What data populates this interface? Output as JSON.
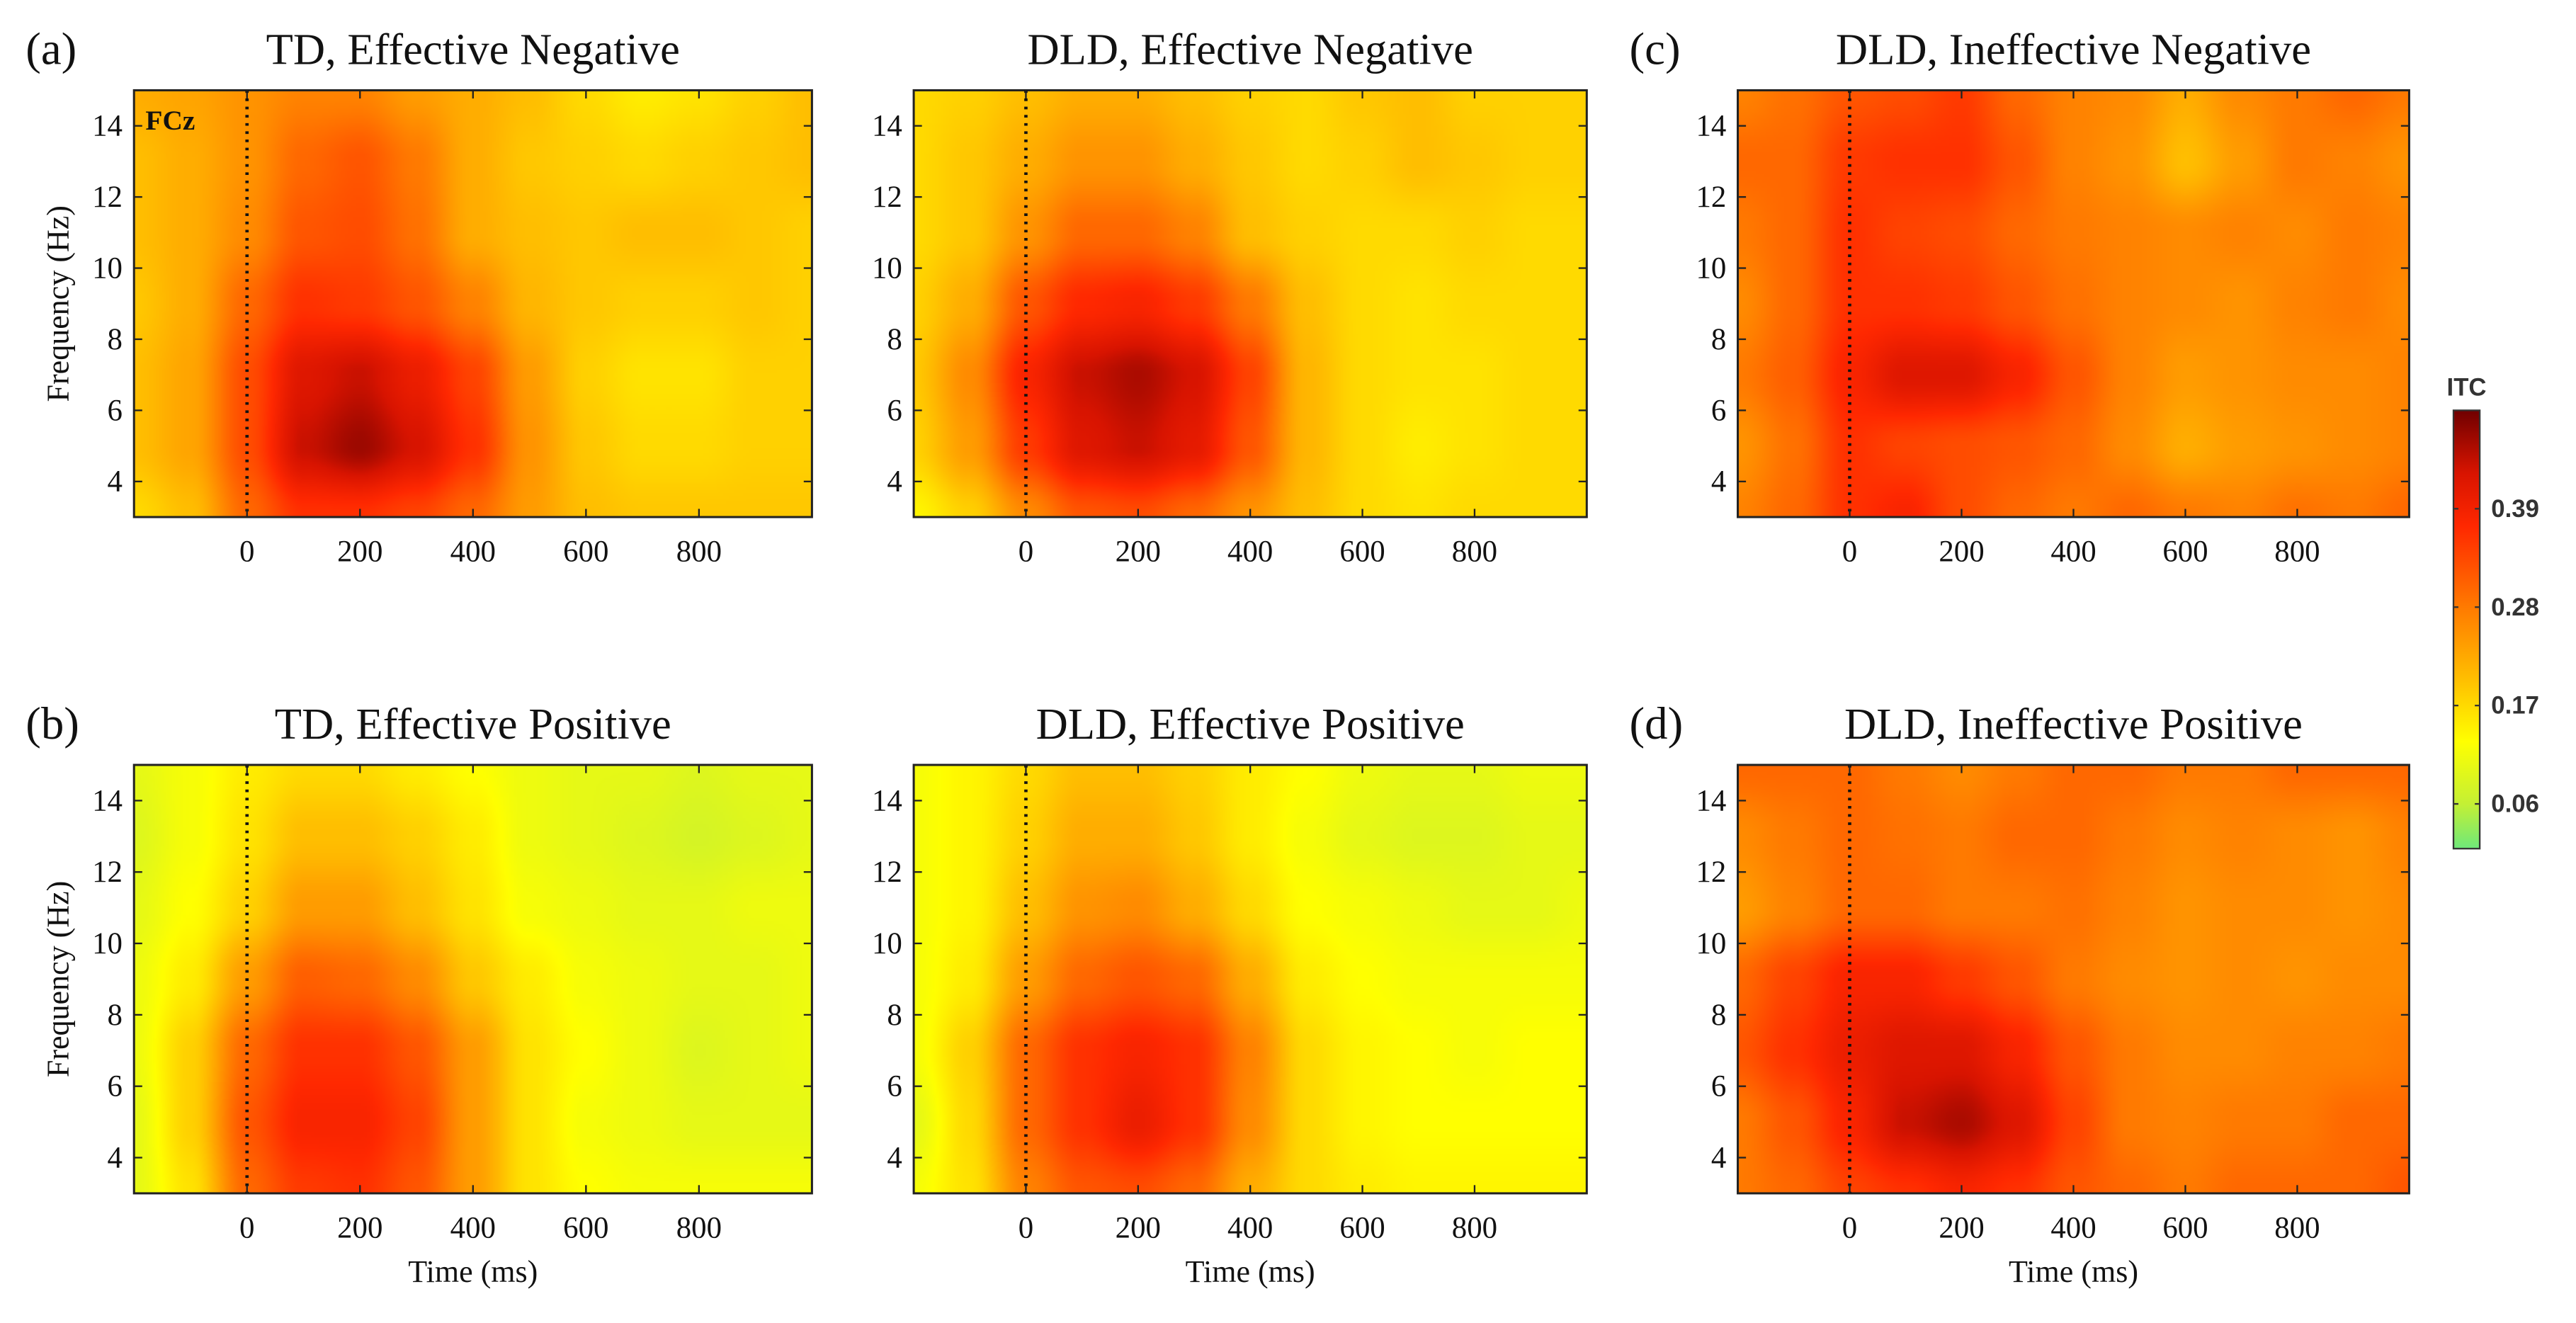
{
  "chart_data": [
    {
      "type": "heatmap",
      "panel": "a",
      "panel_label": "(a)",
      "title": "TD, Effective Negative",
      "annotation": "FCz",
      "xlabel": "",
      "ylabel": "Frequency (Hz)",
      "xlim": [
        -200,
        1000
      ],
      "ylim": [
        3,
        15
      ],
      "xticks": [
        0,
        200,
        400,
        600,
        800
      ],
      "yticks": [
        4,
        6,
        8,
        10,
        12,
        14
      ],
      "event_line_x": 0,
      "x": [
        -200,
        -100,
        0,
        100,
        200,
        300,
        400,
        500,
        600,
        700,
        800,
        900,
        1000
      ],
      "y": [
        15,
        13,
        11,
        9,
        7,
        5,
        3
      ],
      "z": [
        [
          0.22,
          0.23,
          0.25,
          0.27,
          0.27,
          0.24,
          0.22,
          0.2,
          0.17,
          0.15,
          0.16,
          0.18,
          0.2
        ],
        [
          0.2,
          0.22,
          0.25,
          0.3,
          0.32,
          0.28,
          0.22,
          0.19,
          0.18,
          0.17,
          0.18,
          0.19,
          0.2
        ],
        [
          0.2,
          0.22,
          0.26,
          0.32,
          0.33,
          0.29,
          0.22,
          0.2,
          0.19,
          0.2,
          0.2,
          0.19,
          0.18
        ],
        [
          0.19,
          0.22,
          0.3,
          0.36,
          0.35,
          0.32,
          0.27,
          0.21,
          0.19,
          0.18,
          0.18,
          0.19,
          0.18
        ],
        [
          0.2,
          0.23,
          0.33,
          0.42,
          0.44,
          0.4,
          0.34,
          0.24,
          0.18,
          0.16,
          0.16,
          0.18,
          0.18
        ],
        [
          0.2,
          0.23,
          0.33,
          0.44,
          0.47,
          0.43,
          0.36,
          0.25,
          0.19,
          0.17,
          0.17,
          0.18,
          0.18
        ],
        [
          0.17,
          0.2,
          0.3,
          0.36,
          0.36,
          0.34,
          0.3,
          0.24,
          0.2,
          0.19,
          0.19,
          0.19,
          0.19
        ]
      ]
    },
    {
      "type": "heatmap",
      "panel": "a2",
      "panel_label": "",
      "title": "DLD, Effective Negative",
      "xlabel": "",
      "ylabel": "",
      "xlim": [
        -200,
        1000
      ],
      "ylim": [
        3,
        15
      ],
      "xticks": [
        0,
        200,
        400,
        600,
        800
      ],
      "yticks": [
        4,
        6,
        8,
        10,
        12,
        14
      ],
      "event_line_x": 0,
      "x": [
        -200,
        -100,
        0,
        100,
        200,
        300,
        400,
        500,
        600,
        700,
        800,
        900,
        1000
      ],
      "y": [
        15,
        13,
        11,
        9,
        7,
        5,
        3
      ],
      "z": [
        [
          0.17,
          0.18,
          0.2,
          0.22,
          0.22,
          0.2,
          0.18,
          0.17,
          0.19,
          0.2,
          0.18,
          0.18,
          0.18
        ],
        [
          0.17,
          0.19,
          0.22,
          0.25,
          0.25,
          0.22,
          0.19,
          0.17,
          0.18,
          0.2,
          0.19,
          0.18,
          0.18
        ],
        [
          0.17,
          0.19,
          0.25,
          0.3,
          0.3,
          0.27,
          0.2,
          0.18,
          0.17,
          0.17,
          0.18,
          0.17,
          0.17
        ],
        [
          0.18,
          0.22,
          0.32,
          0.37,
          0.38,
          0.35,
          0.28,
          0.2,
          0.17,
          0.16,
          0.17,
          0.17,
          0.17
        ],
        [
          0.19,
          0.26,
          0.38,
          0.44,
          0.46,
          0.43,
          0.34,
          0.21,
          0.17,
          0.16,
          0.16,
          0.17,
          0.17
        ],
        [
          0.18,
          0.24,
          0.35,
          0.42,
          0.44,
          0.41,
          0.32,
          0.21,
          0.17,
          0.15,
          0.16,
          0.17,
          0.17
        ],
        [
          0.14,
          0.18,
          0.26,
          0.32,
          0.33,
          0.3,
          0.25,
          0.2,
          0.17,
          0.16,
          0.17,
          0.17,
          0.17
        ]
      ]
    },
    {
      "type": "heatmap",
      "panel": "c",
      "panel_label": "(c)",
      "title": "DLD, Ineffective Negative",
      "xlabel": "",
      "ylabel": "",
      "xlim": [
        -200,
        1000
      ],
      "ylim": [
        3,
        15
      ],
      "xticks": [
        0,
        200,
        400,
        600,
        800
      ],
      "yticks": [
        4,
        6,
        8,
        10,
        12,
        14
      ],
      "event_line_x": 0,
      "x": [
        -200,
        -100,
        0,
        100,
        200,
        300,
        400,
        500,
        600,
        700,
        800,
        900,
        1000
      ],
      "y": [
        15,
        13,
        11,
        9,
        7,
        5,
        3
      ],
      "z": [
        [
          0.27,
          0.29,
          0.32,
          0.33,
          0.35,
          0.3,
          0.27,
          0.26,
          0.22,
          0.26,
          0.28,
          0.3,
          0.28
        ],
        [
          0.3,
          0.3,
          0.35,
          0.36,
          0.36,
          0.32,
          0.27,
          0.25,
          0.2,
          0.24,
          0.28,
          0.27,
          0.25
        ],
        [
          0.28,
          0.3,
          0.36,
          0.34,
          0.33,
          0.3,
          0.28,
          0.27,
          0.26,
          0.27,
          0.26,
          0.28,
          0.27
        ],
        [
          0.26,
          0.3,
          0.36,
          0.36,
          0.35,
          0.32,
          0.29,
          0.27,
          0.26,
          0.25,
          0.27,
          0.28,
          0.26
        ],
        [
          0.28,
          0.31,
          0.38,
          0.42,
          0.42,
          0.38,
          0.32,
          0.27,
          0.24,
          0.25,
          0.26,
          0.26,
          0.27
        ],
        [
          0.25,
          0.29,
          0.36,
          0.34,
          0.33,
          0.32,
          0.3,
          0.26,
          0.22,
          0.24,
          0.25,
          0.26,
          0.27
        ],
        [
          0.27,
          0.3,
          0.36,
          0.38,
          0.33,
          0.3,
          0.28,
          0.3,
          0.28,
          0.27,
          0.29,
          0.28,
          0.3
        ]
      ]
    },
    {
      "type": "heatmap",
      "panel": "b",
      "panel_label": "(b)",
      "title": "TD, Effective Positive",
      "xlabel": "Time (ms)",
      "ylabel": "Frequency (Hz)",
      "xlim": [
        -200,
        1000
      ],
      "ylim": [
        3,
        15
      ],
      "xticks": [
        0,
        200,
        400,
        600,
        800
      ],
      "yticks": [
        4,
        6,
        8,
        10,
        12,
        14
      ],
      "event_line_x": 0,
      "x": [
        -200,
        -100,
        0,
        100,
        200,
        300,
        400,
        500,
        600,
        700,
        800,
        900,
        1000
      ],
      "y": [
        15,
        13,
        11,
        9,
        7,
        5,
        3
      ],
      "z": [
        [
          0.1,
          0.12,
          0.15,
          0.17,
          0.17,
          0.15,
          0.13,
          0.11,
          0.1,
          0.1,
          0.09,
          0.1,
          0.1
        ],
        [
          0.09,
          0.12,
          0.16,
          0.2,
          0.2,
          0.18,
          0.15,
          0.11,
          0.1,
          0.09,
          0.08,
          0.09,
          0.1
        ],
        [
          0.1,
          0.13,
          0.18,
          0.24,
          0.24,
          0.2,
          0.16,
          0.12,
          0.11,
          0.1,
          0.1,
          0.11,
          0.11
        ],
        [
          0.11,
          0.15,
          0.24,
          0.31,
          0.3,
          0.26,
          0.19,
          0.15,
          0.12,
          0.11,
          0.1,
          0.1,
          0.11
        ],
        [
          0.11,
          0.18,
          0.3,
          0.36,
          0.36,
          0.32,
          0.24,
          0.16,
          0.13,
          0.11,
          0.09,
          0.1,
          0.11
        ],
        [
          0.1,
          0.18,
          0.32,
          0.38,
          0.38,
          0.34,
          0.24,
          0.16,
          0.12,
          0.11,
          0.1,
          0.1,
          0.1
        ],
        [
          0.1,
          0.16,
          0.3,
          0.35,
          0.36,
          0.32,
          0.24,
          0.16,
          0.13,
          0.12,
          0.12,
          0.12,
          0.12
        ]
      ]
    },
    {
      "type": "heatmap",
      "panel": "b2",
      "panel_label": "",
      "title": "DLD, Effective Positive",
      "xlabel": "Time (ms)",
      "ylabel": "",
      "xlim": [
        -200,
        1000
      ],
      "ylim": [
        3,
        15
      ],
      "xticks": [
        0,
        200,
        400,
        600,
        800
      ],
      "yticks": [
        4,
        6,
        8,
        10,
        12,
        14
      ],
      "event_line_x": 0,
      "x": [
        -200,
        -100,
        0,
        100,
        200,
        300,
        400,
        500,
        600,
        700,
        800,
        900,
        1000
      ],
      "y": [
        15,
        13,
        11,
        9,
        7,
        5,
        3
      ],
      "z": [
        [
          0.12,
          0.14,
          0.17,
          0.2,
          0.2,
          0.18,
          0.15,
          0.13,
          0.11,
          0.1,
          0.1,
          0.11,
          0.11
        ],
        [
          0.12,
          0.14,
          0.18,
          0.22,
          0.22,
          0.19,
          0.15,
          0.12,
          0.1,
          0.09,
          0.09,
          0.1,
          0.1
        ],
        [
          0.12,
          0.14,
          0.2,
          0.25,
          0.26,
          0.22,
          0.17,
          0.13,
          0.12,
          0.11,
          0.1,
          0.1,
          0.11
        ],
        [
          0.12,
          0.15,
          0.24,
          0.3,
          0.32,
          0.3,
          0.22,
          0.15,
          0.13,
          0.12,
          0.12,
          0.12,
          0.12
        ],
        [
          0.12,
          0.18,
          0.3,
          0.36,
          0.38,
          0.36,
          0.27,
          0.17,
          0.14,
          0.13,
          0.12,
          0.13,
          0.13
        ],
        [
          0.1,
          0.17,
          0.3,
          0.36,
          0.4,
          0.36,
          0.26,
          0.17,
          0.14,
          0.13,
          0.13,
          0.13,
          0.13
        ],
        [
          0.12,
          0.16,
          0.27,
          0.32,
          0.33,
          0.3,
          0.22,
          0.17,
          0.15,
          0.14,
          0.14,
          0.14,
          0.14
        ]
      ]
    },
    {
      "type": "heatmap",
      "panel": "d",
      "panel_label": "(d)",
      "title": "DLD, Ineffective Positive",
      "xlabel": "Time (ms)",
      "ylabel": "",
      "xlim": [
        -200,
        1000
      ],
      "ylim": [
        3,
        15
      ],
      "xticks": [
        0,
        200,
        400,
        600,
        800
      ],
      "yticks": [
        4,
        6,
        8,
        10,
        12,
        14
      ],
      "event_line_x": 0,
      "x": [
        -200,
        -100,
        0,
        100,
        200,
        300,
        400,
        500,
        600,
        700,
        800,
        900,
        1000
      ],
      "y": [
        15,
        13,
        11,
        9,
        7,
        5,
        3
      ],
      "z": [
        [
          0.3,
          0.3,
          0.3,
          0.28,
          0.26,
          0.28,
          0.3,
          0.3,
          0.28,
          0.28,
          0.3,
          0.3,
          0.3
        ],
        [
          0.26,
          0.28,
          0.3,
          0.29,
          0.28,
          0.3,
          0.3,
          0.28,
          0.26,
          0.27,
          0.26,
          0.25,
          0.27
        ],
        [
          0.24,
          0.27,
          0.3,
          0.3,
          0.28,
          0.28,
          0.29,
          0.27,
          0.25,
          0.26,
          0.26,
          0.25,
          0.26
        ],
        [
          0.3,
          0.34,
          0.38,
          0.38,
          0.35,
          0.32,
          0.28,
          0.26,
          0.25,
          0.26,
          0.25,
          0.26,
          0.26
        ],
        [
          0.32,
          0.36,
          0.4,
          0.42,
          0.42,
          0.38,
          0.32,
          0.28,
          0.26,
          0.26,
          0.27,
          0.27,
          0.28
        ],
        [
          0.28,
          0.32,
          0.38,
          0.44,
          0.46,
          0.42,
          0.34,
          0.28,
          0.27,
          0.28,
          0.28,
          0.3,
          0.3
        ],
        [
          0.28,
          0.3,
          0.34,
          0.36,
          0.38,
          0.36,
          0.32,
          0.3,
          0.28,
          0.3,
          0.3,
          0.3,
          0.32
        ]
      ]
    }
  ],
  "colorbar": {
    "label": "ITC",
    "clim": [
      0.01,
      0.5
    ],
    "ticks": [
      0.06,
      0.17,
      0.28,
      0.39
    ],
    "tick_labels": [
      "0.06",
      "0.17",
      "0.28",
      "0.39"
    ],
    "colormap": [
      [
        0.01,
        "#6ee87a"
      ],
      [
        0.06,
        "#c4f034"
      ],
      [
        0.13,
        "#ffff00"
      ],
      [
        0.2,
        "#ffbe00"
      ],
      [
        0.28,
        "#ff7a00"
      ],
      [
        0.37,
        "#ff2800"
      ],
      [
        0.43,
        "#d81400"
      ],
      [
        0.5,
        "#700000"
      ]
    ]
  }
}
